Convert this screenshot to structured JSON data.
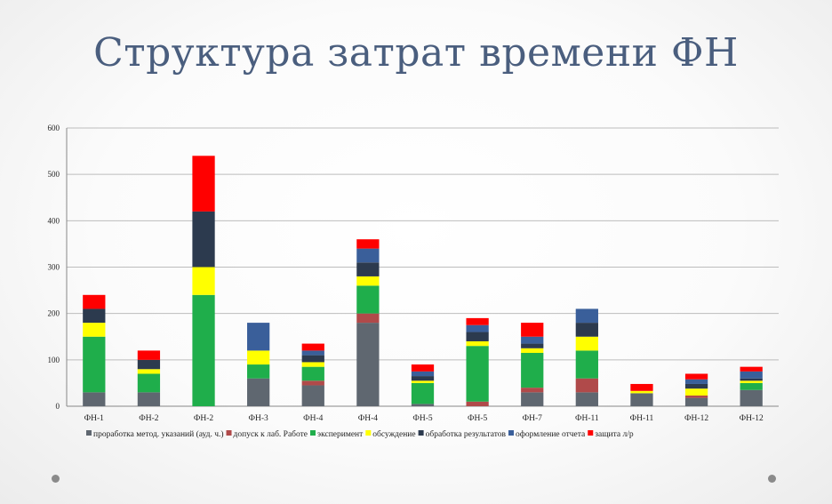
{
  "slide": {
    "title": "Структура затрат времени ФН"
  },
  "chart_data": {
    "type": "bar",
    "stacked": true,
    "title": "",
    "xlabel": "",
    "ylabel": "",
    "ylim": [
      0,
      600
    ],
    "yticks": [
      0,
      100,
      200,
      300,
      400,
      500,
      600
    ],
    "grid": true,
    "legend": "bottom",
    "categories": [
      "ФН-1",
      "ФН-2",
      "ФН-2",
      "ФН-3",
      "ФН-4",
      "ФН-4",
      "ФН-5",
      "ФН-5",
      "ФН-7",
      "ФН-11",
      "ФН-11",
      "ФН-12",
      "ФН-12"
    ],
    "series": [
      {
        "name": "проработка метод. указаний (ауд. ч.)",
        "color": "#5f6770",
        "values": [
          30,
          30,
          0,
          60,
          45,
          180,
          5,
          0,
          30,
          30,
          28,
          18,
          35
        ]
      },
      {
        "name": "допуск к лаб. Работе",
        "color": "#b04a4a",
        "values": [
          0,
          0,
          0,
          0,
          10,
          20,
          0,
          10,
          10,
          30,
          0,
          5,
          0
        ]
      },
      {
        "name": "эксперимент",
        "color": "#1fae4b",
        "values": [
          120,
          40,
          240,
          30,
          30,
          60,
          45,
          120,
          75,
          60,
          0,
          0,
          15
        ]
      },
      {
        "name": "обсуждение",
        "color": "#ffff00",
        "values": [
          30,
          10,
          60,
          30,
          10,
          20,
          5,
          10,
          10,
          30,
          5,
          15,
          5
        ]
      },
      {
        "name": "обработка результатов",
        "color": "#2c3a4e",
        "values": [
          30,
          20,
          120,
          0,
          15,
          30,
          10,
          20,
          10,
          30,
          0,
          10,
          5
        ]
      },
      {
        "name": "оформление отчета",
        "color": "#3a5f9a",
        "values": [
          0,
          0,
          0,
          60,
          10,
          30,
          10,
          15,
          15,
          30,
          0,
          10,
          15
        ]
      },
      {
        "name": "защита л/р",
        "color": "#ff0000",
        "values": [
          30,
          20,
          120,
          0,
          15,
          20,
          15,
          15,
          30,
          0,
          15,
          12,
          10
        ]
      }
    ]
  }
}
